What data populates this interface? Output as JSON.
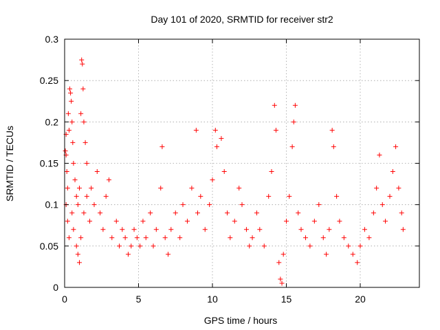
{
  "chart_data": {
    "type": "scatter",
    "title": "Day 101 of 2020, SRMTID for receiver str2",
    "xlabel": "GPS time / hours",
    "ylabel": "SRMTID / TECUs",
    "xlim": [
      0,
      24
    ],
    "ylim": [
      0,
      0.3
    ],
    "xticks": [
      0,
      5,
      10,
      15,
      20
    ],
    "yticks": [
      0,
      0.05,
      0.1,
      0.15,
      0.2,
      0.25,
      0.3
    ],
    "xtick_labels": [
      "0",
      "5",
      "10",
      "15",
      "20"
    ],
    "ytick_labels": [
      "0",
      "0.05",
      "0.1",
      "0.15",
      "0.2",
      "0.25",
      "0.3"
    ],
    "grid": true,
    "marker": "+",
    "color": "#ff0000",
    "series": [
      {
        "name": "SRMTID",
        "points": [
          [
            0.05,
            0.165
          ],
          [
            0.1,
            0.16
          ],
          [
            0.1,
            0.185
          ],
          [
            0.15,
            0.14
          ],
          [
            0.2,
            0.12
          ],
          [
            0.25,
            0.21
          ],
          [
            0.3,
            0.19
          ],
          [
            0.35,
            0.24
          ],
          [
            0.4,
            0.235
          ],
          [
            0.45,
            0.225
          ],
          [
            0.5,
            0.2
          ],
          [
            0.55,
            0.175
          ],
          [
            0.6,
            0.15
          ],
          [
            0.7,
            0.13
          ],
          [
            0.8,
            0.11
          ],
          [
            0.9,
            0.1
          ],
          [
            1.0,
            0.12
          ],
          [
            1.1,
            0.21
          ],
          [
            1.15,
            0.275
          ],
          [
            1.2,
            0.27
          ],
          [
            1.25,
            0.24
          ],
          [
            1.3,
            0.2
          ],
          [
            1.4,
            0.175
          ],
          [
            1.5,
            0.15
          ],
          [
            0.1,
            0.1
          ],
          [
            0.2,
            0.08
          ],
          [
            0.3,
            0.06
          ],
          [
            0.5,
            0.09
          ],
          [
            0.6,
            0.07
          ],
          [
            0.8,
            0.05
          ],
          [
            0.9,
            0.04
          ],
          [
            1.0,
            0.03
          ],
          [
            1.1,
            0.06
          ],
          [
            1.3,
            0.09
          ],
          [
            1.5,
            0.11
          ],
          [
            1.7,
            0.08
          ],
          [
            1.8,
            0.12
          ],
          [
            2.0,
            0.1
          ],
          [
            2.2,
            0.14
          ],
          [
            2.4,
            0.09
          ],
          [
            2.6,
            0.07
          ],
          [
            2.8,
            0.11
          ],
          [
            3.0,
            0.13
          ],
          [
            3.2,
            0.06
          ],
          [
            3.5,
            0.08
          ],
          [
            3.7,
            0.05
          ],
          [
            3.9,
            0.07
          ],
          [
            4.1,
            0.06
          ],
          [
            4.3,
            0.04
          ],
          [
            4.5,
            0.05
          ],
          [
            4.7,
            0.07
          ],
          [
            4.9,
            0.06
          ],
          [
            5.1,
            0.05
          ],
          [
            5.3,
            0.08
          ],
          [
            5.5,
            0.06
          ],
          [
            5.8,
            0.09
          ],
          [
            6.0,
            0.05
          ],
          [
            6.2,
            0.07
          ],
          [
            6.5,
            0.12
          ],
          [
            6.6,
            0.17
          ],
          [
            6.8,
            0.06
          ],
          [
            7.0,
            0.04
          ],
          [
            7.2,
            0.07
          ],
          [
            7.5,
            0.09
          ],
          [
            7.8,
            0.06
          ],
          [
            8.0,
            0.1
          ],
          [
            8.3,
            0.08
          ],
          [
            8.6,
            0.12
          ],
          [
            8.9,
            0.19
          ],
          [
            9.0,
            0.09
          ],
          [
            9.2,
            0.11
          ],
          [
            9.5,
            0.07
          ],
          [
            9.8,
            0.1
          ],
          [
            10.0,
            0.13
          ],
          [
            10.2,
            0.19
          ],
          [
            10.3,
            0.17
          ],
          [
            10.6,
            0.18
          ],
          [
            10.8,
            0.14
          ],
          [
            11.0,
            0.09
          ],
          [
            11.2,
            0.06
          ],
          [
            11.5,
            0.08
          ],
          [
            11.8,
            0.12
          ],
          [
            12.0,
            0.1
          ],
          [
            12.3,
            0.07
          ],
          [
            12.5,
            0.05
          ],
          [
            12.7,
            0.06
          ],
          [
            13.0,
            0.09
          ],
          [
            13.2,
            0.07
          ],
          [
            13.5,
            0.05
          ],
          [
            13.8,
            0.11
          ],
          [
            14.0,
            0.14
          ],
          [
            14.2,
            0.22
          ],
          [
            14.3,
            0.19
          ],
          [
            14.5,
            0.03
          ],
          [
            14.6,
            0.01
          ],
          [
            14.7,
            0.005
          ],
          [
            14.8,
            0.04
          ],
          [
            15.0,
            0.08
          ],
          [
            15.2,
            0.11
          ],
          [
            15.4,
            0.17
          ],
          [
            15.5,
            0.2
          ],
          [
            15.6,
            0.22
          ],
          [
            15.8,
            0.09
          ],
          [
            16.0,
            0.07
          ],
          [
            16.3,
            0.06
          ],
          [
            16.6,
            0.05
          ],
          [
            16.9,
            0.08
          ],
          [
            17.2,
            0.1
          ],
          [
            17.5,
            0.06
          ],
          [
            17.7,
            0.04
          ],
          [
            17.9,
            0.07
          ],
          [
            18.1,
            0.19
          ],
          [
            18.2,
            0.17
          ],
          [
            18.4,
            0.11
          ],
          [
            18.6,
            0.08
          ],
          [
            18.9,
            0.06
          ],
          [
            19.2,
            0.05
          ],
          [
            19.5,
            0.04
          ],
          [
            19.8,
            0.03
          ],
          [
            20.0,
            0.05
          ],
          [
            20.3,
            0.07
          ],
          [
            20.6,
            0.06
          ],
          [
            20.9,
            0.09
          ],
          [
            21.1,
            0.12
          ],
          [
            21.3,
            0.16
          ],
          [
            21.5,
            0.1
          ],
          [
            21.7,
            0.08
          ],
          [
            22.0,
            0.11
          ],
          [
            22.2,
            0.14
          ],
          [
            22.4,
            0.17
          ],
          [
            22.6,
            0.12
          ],
          [
            22.8,
            0.09
          ],
          [
            22.9,
            0.07
          ]
        ]
      }
    ]
  }
}
